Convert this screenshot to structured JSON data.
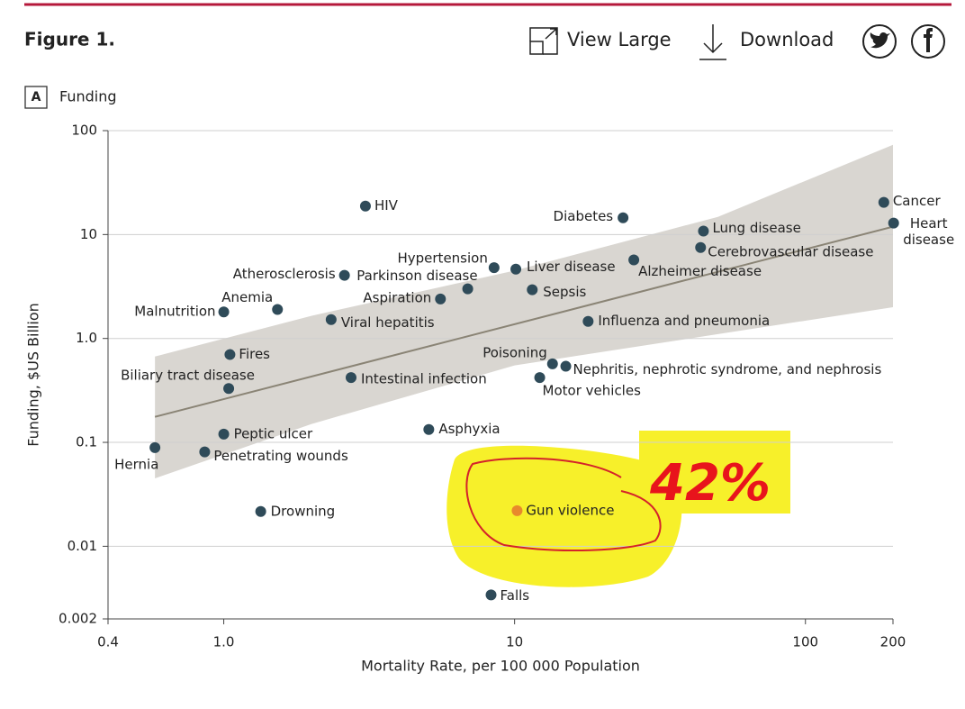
{
  "header": {
    "figure": "Figure 1.",
    "view_large": "View Large",
    "download": "Download"
  },
  "panel": {
    "letter": "A",
    "title": "Funding"
  },
  "chart_data": {
    "type": "scatter",
    "x_label": "Mortality Rate, per 100 000 Population",
    "y_label": "Funding, $US Billion",
    "log_x": true,
    "log_y": true,
    "grid": true,
    "xlim": [
      0.4,
      200
    ],
    "ylim": [
      0.002,
      100
    ],
    "xticks": [
      0.4,
      {
        "value": 1,
        "label": "1.0"
      },
      10,
      100,
      200
    ],
    "yticks": [
      0.002,
      0.01,
      0.1,
      {
        "value": 1,
        "label": "1.0"
      },
      10,
      100
    ],
    "labels": [
      "Hernia",
      "Penetrating wounds",
      "Peptic ulcer",
      "Biliary tract disease",
      "Fires",
      "Malnutrition",
      "Anemia",
      "Drowning",
      "Atherosclerosis",
      "Viral hepatitis",
      "HIV",
      "Intestinal infection",
      "Asphyxia",
      "Aspiration",
      "Parkinson disease",
      "Hypertension",
      "Liver disease",
      "Sepsis",
      "Gun violence",
      "Falls",
      "Poisoning",
      "Nephritis, nephrotic syndrome, and nephrosis",
      "Motor vehicles",
      "Influenza and pneumonia",
      "Diabetes",
      "Alzheimer disease",
      "Lung disease",
      "Cerebrovascular disease",
      "Cancer",
      "Heart disease"
    ],
    "x": [
      0.58,
      0.86,
      1.0,
      1.04,
      1.05,
      1.0,
      1.53,
      1.34,
      2.6,
      2.34,
      3.07,
      2.74,
      5.07,
      5.56,
      6.9,
      8.5,
      10.1,
      11.5,
      10.2,
      8.3,
      13.5,
      15,
      12.2,
      17.9,
      23.6,
      25.7,
      44.6,
      43.6,
      186,
      201
    ],
    "values": [
      0.089,
      0.081,
      0.12,
      0.33,
      0.7,
      1.8,
      1.9,
      0.0216,
      4.05,
      1.52,
      18.8,
      0.42,
      0.133,
      2.4,
      3.0,
      4.8,
      4.65,
      2.94,
      0.022,
      0.0034,
      0.57,
      0.54,
      0.42,
      1.46,
      14.5,
      5.7,
      10.8,
      7.5,
      20.4,
      12.9
    ],
    "colors": [
      "#2f4b59",
      "#2f4b59",
      "#2f4b59",
      "#2f4b59",
      "#2f4b59",
      "#2f4b59",
      "#2f4b59",
      "#2f4b59",
      "#2f4b59",
      "#2f4b59",
      "#2f4b59",
      "#2f4b59",
      "#2f4b59",
      "#2f4b59",
      "#2f4b59",
      "#2f4b59",
      "#2f4b59",
      "#2f4b59",
      "#e8892c",
      "#2f4b59",
      "#2f4b59",
      "#2f4b59",
      "#2f4b59",
      "#2f4b59",
      "#2f4b59",
      "#2f4b59",
      "#2f4b59",
      "#2f4b59",
      "#2f4b59",
      "#2f4b59"
    ],
    "fit": {
      "x": [
        0.58,
        200
      ],
      "values": [
        0.176,
        11.9
      ],
      "color": "#8a8475"
    },
    "band": {
      "x": [
        0.58,
        2,
        10,
        50,
        200
      ],
      "lower": [
        0.045,
        0.15,
        0.55,
        1.1,
        2.0
      ],
      "upper": [
        0.67,
        1.65,
        4.5,
        14.8,
        73
      ],
      "color": "#d9d6d1"
    },
    "annotation": "42%"
  }
}
